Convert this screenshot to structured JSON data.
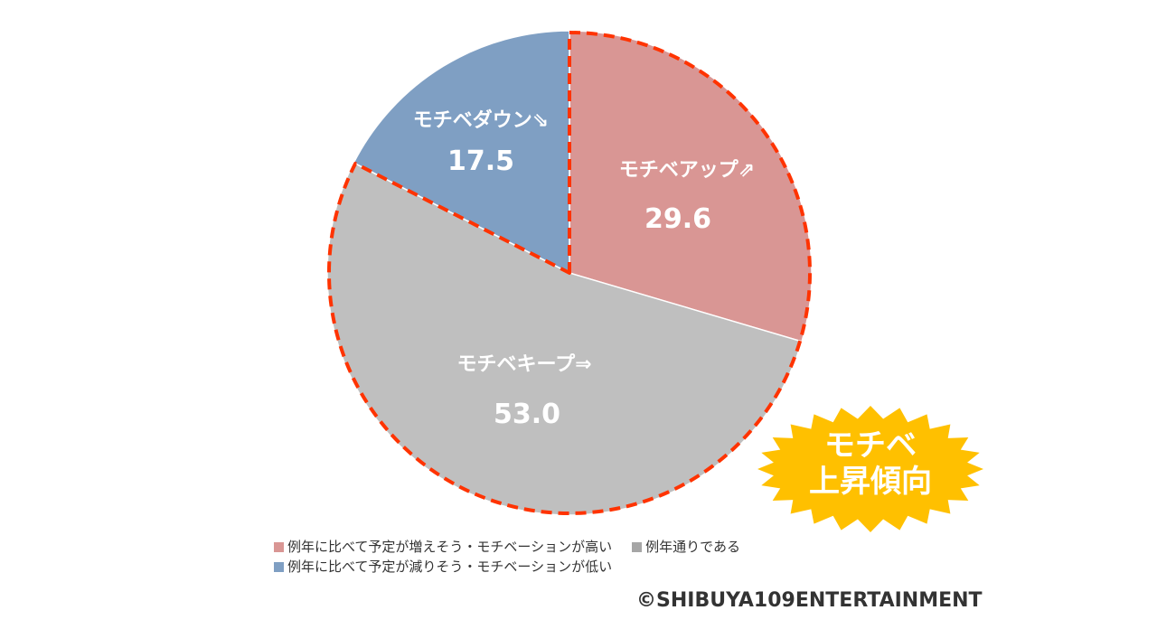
{
  "chart_data": {
    "type": "pie",
    "slices": [
      {
        "key": "up",
        "label": "モチベアップ⇗",
        "value": 29.6,
        "value_text": "29.6",
        "color": "#d99694"
      },
      {
        "key": "keep",
        "label": "モチベキープ⇒",
        "value": 53.0,
        "value_text": "53.0",
        "color": "#bfbfbf"
      },
      {
        "key": "down",
        "label": "モチベダウン⇘",
        "value": 17.5,
        "value_text": "17.5",
        "color": "#7f9fc3"
      }
    ],
    "highlight_outline_color": "#ff3300",
    "legend": [
      {
        "color": "#d99694",
        "text": "例年に比べて予定が増えそう・モチベーションが高い"
      },
      {
        "color": "#a6a6a6",
        "text": "例年通りである"
      },
      {
        "color": "#7f9fc3",
        "text": "例年に比べて予定が減りそう・モチベーションが低い"
      }
    ],
    "legend_placement": "bottom"
  },
  "badge": {
    "line1": "モチベ",
    "line2": "上昇傾向",
    "color": "#ffc000"
  },
  "copyright": "©SHIBUYA109ENTERTAINMENT"
}
